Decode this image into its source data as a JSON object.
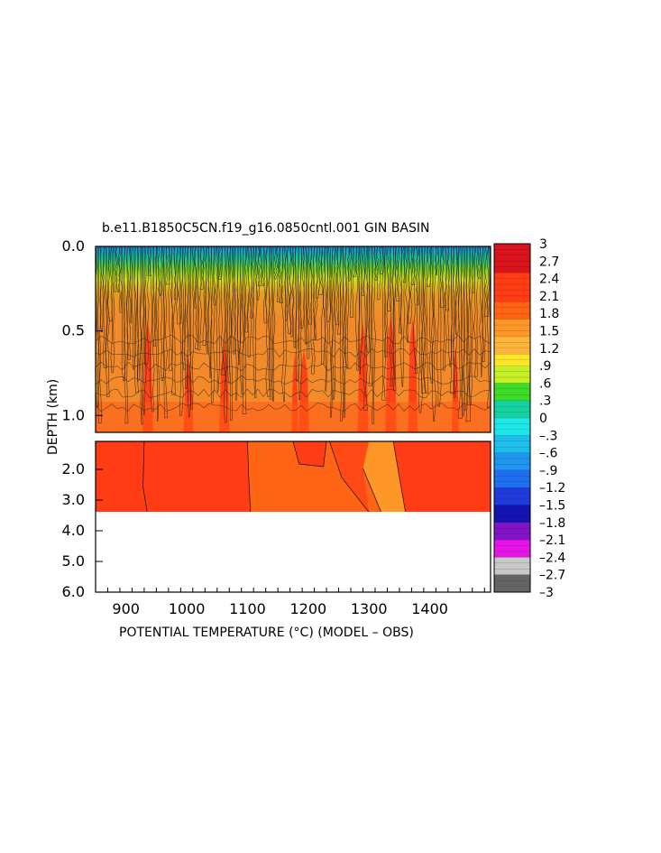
{
  "chart_data": {
    "type": "heatmap",
    "title": "b.e11.B1850C5CN.f19_g16.0850cntl.001 GIN BASIN",
    "xlabel": "POTENTIAL TEMPERATURE (°C) (MODEL – OBS)",
    "ylabel": "DEPTH (km)",
    "xlim": [
      850,
      1500
    ],
    "x_ticks": [
      "900",
      "1000",
      "1100",
      "1200",
      "1300",
      "1400"
    ],
    "upper_panel": {
      "ylim": [
        0.0,
        1.1
      ],
      "y_ticks": [
        "0.0",
        "0.5",
        "1.0"
      ]
    },
    "lower_panel": {
      "ylim": [
        1.1,
        6.0
      ],
      "y_ticks": [
        "2.0",
        "3.0",
        "4.0",
        "5.0",
        "6.0"
      ],
      "data_bottom_depth": 3.4
    },
    "colorbar": {
      "range": [
        -3,
        3
      ],
      "labels": [
        "3",
        "2.7",
        "2.4",
        "2.1",
        "1.8",
        "1.5",
        "1.2",
        ".9",
        ".6",
        ".3",
        "0",
        "–.3",
        "–.6",
        "–.9",
        "–1.2",
        "–1.5",
        "–1.8",
        "–2.1",
        "–2.4",
        "–2.7",
        "–3"
      ],
      "colors": {
        "3.0": "#8b0000",
        "2.5": "#d9141c",
        "2.0": "#ff3c14",
        "1.7": "#ff6414",
        "1.4": "#ff9628",
        "1.1": "#ffb43c",
        "0.9": "#ffe628",
        "0.6": "#c8f028",
        "0.3": "#3cdc28",
        "0.0": "#14d2a0",
        "-0.3": "#1ee6e6",
        "-0.6": "#1ebeeb",
        "-0.9": "#1e96f0",
        "-1.2": "#1e6ef0",
        "-1.5": "#1e3cdc",
        "-1.8": "#1414b4",
        "-2.1": "#8214c8",
        "-2.4": "#e614e6",
        "-2.7": "#c8c8c8",
        "-3.0": "#646464"
      }
    },
    "field_summary": {
      "surface_range": [
        -1.5,
        0.6
      ],
      "mid_upper_typical": 1.5,
      "mid_upper_max": 2.2,
      "deep_typical": 2.0,
      "deep_warm_max": 2.3,
      "deep_cool_min": 1.4,
      "grid": false
    }
  }
}
